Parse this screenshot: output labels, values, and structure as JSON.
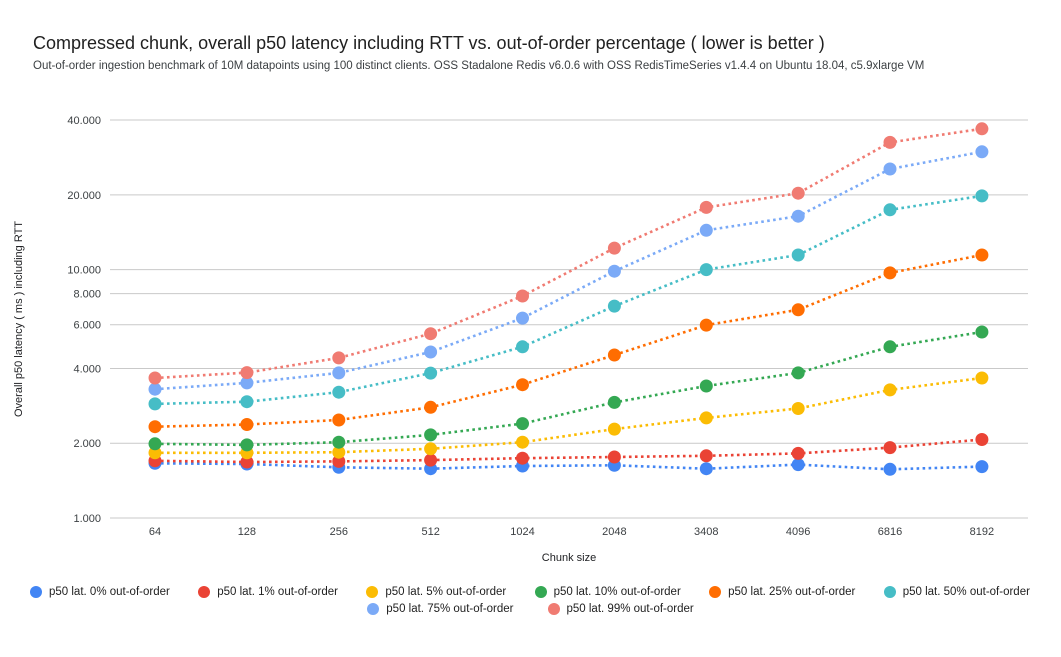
{
  "header": {
    "title": "Compressed chunk, overall p50 latency including RTT vs. out-of-order percentage ( lower is better )",
    "subtitle": "Out-of-order ingestion benchmark of 10M datapoints using 100 distinct clients. OSS Stadalone Redis v6.0.6 with OSS RedisTimeSeries v1.4.4 on Ubuntu 18.04, c5.9xlarge VM"
  },
  "chart_data": {
    "type": "scatter",
    "line_style": "dotted",
    "grid": true,
    "legend_position": "bottom",
    "x": {
      "label": "Chunk size",
      "categories": [
        "64",
        "128",
        "256",
        "512",
        "1024",
        "2048",
        "3408",
        "4096",
        "6816",
        "8192"
      ]
    },
    "y": {
      "label": "Overall p50 latency ( ms ) including RTT",
      "scale": "log",
      "ticks": [
        1,
        2,
        4,
        6,
        8,
        10,
        20,
        40
      ],
      "tick_labels": [
        "1.000",
        "2.000",
        "4.000",
        "6.000",
        "8.000",
        "10.000",
        "20.000",
        "40.000"
      ],
      "range": [
        1,
        45
      ]
    },
    "series": [
      {
        "name": "p50 lat. 0% out-of-order",
        "color": "#4285F4",
        "values": [
          1.66,
          1.65,
          1.6,
          1.58,
          1.62,
          1.63,
          1.58,
          1.64,
          1.57,
          1.61
        ]
      },
      {
        "name": "p50 lat. 1% out-of-order",
        "color": "#EA4335",
        "values": [
          1.7,
          1.68,
          1.69,
          1.71,
          1.74,
          1.76,
          1.78,
          1.82,
          1.92,
          2.07
        ]
      },
      {
        "name": "p50 lat. 5% out-of-order",
        "color": "#FBBC04",
        "values": [
          1.83,
          1.83,
          1.84,
          1.9,
          2.02,
          2.28,
          2.53,
          2.76,
          3.28,
          3.66
        ]
      },
      {
        "name": "p50 lat. 10% out-of-order",
        "color": "#34A853",
        "values": [
          1.99,
          1.97,
          2.02,
          2.16,
          2.4,
          2.92,
          3.4,
          3.84,
          4.89,
          5.61
        ]
      },
      {
        "name": "p50 lat. 25% out-of-order",
        "color": "#FF6D01",
        "values": [
          2.33,
          2.38,
          2.48,
          2.79,
          3.44,
          4.53,
          5.98,
          6.89,
          9.7,
          11.45
        ]
      },
      {
        "name": "p50 lat. 50% out-of-order",
        "color": "#46BDC6",
        "values": [
          2.88,
          2.94,
          3.21,
          3.83,
          4.89,
          7.13,
          10.0,
          11.45,
          17.4,
          19.8
        ]
      },
      {
        "name": "p50 lat. 75% out-of-order",
        "color": "#7BAAF7",
        "values": [
          3.3,
          3.5,
          3.84,
          4.66,
          6.38,
          9.85,
          14.4,
          16.4,
          25.4,
          29.8
        ]
      },
      {
        "name": "p50 lat. 99% out-of-order",
        "color": "#F07B72",
        "values": [
          3.66,
          3.85,
          4.41,
          5.52,
          7.83,
          12.2,
          17.8,
          20.3,
          32.5,
          36.9
        ]
      }
    ]
  }
}
